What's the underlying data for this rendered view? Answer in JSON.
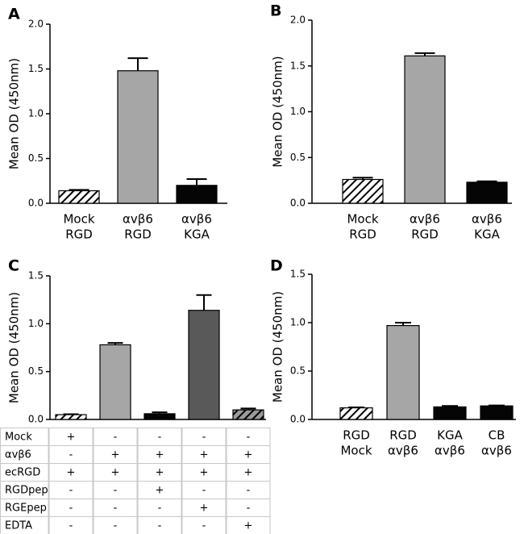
{
  "chart_data": [
    {
      "type": "bar",
      "panel": "A",
      "y_label": "Mean OD (450nm)",
      "categories": [
        [
          "Mock",
          "RGD"
        ],
        [
          "αvβ6",
          "RGD"
        ],
        [
          "αvβ6",
          "KGA"
        ]
      ],
      "values": [
        0.14,
        1.48,
        0.2
      ],
      "errors": [
        0.01,
        0.14,
        0.07
      ],
      "colors": [
        "#ffffff",
        "#a6a6a6",
        "#050505"
      ],
      "hatch": [
        true,
        false,
        false
      ],
      "ylim": [
        0,
        2
      ],
      "yticks": [
        {
          "value": 0,
          "label": "0.0"
        },
        0.5,
        {
          "value": 1,
          "label": "1.0"
        },
        1.5,
        {
          "value": 2,
          "label": "2.0"
        }
      ]
    },
    {
      "type": "bar",
      "panel": "B",
      "y_label": "Mean OD (450nm)",
      "categories": [
        [
          "Mock",
          "RGD"
        ],
        [
          "αvβ6",
          "RGD"
        ],
        [
          "αvβ6",
          "KGA"
        ]
      ],
      "values": [
        0.26,
        1.61,
        0.23
      ],
      "errors": [
        0.02,
        0.03,
        0.01
      ],
      "colors": [
        "#ffffff",
        "#a6a6a6",
        "#050505"
      ],
      "hatch": [
        true,
        false,
        false
      ],
      "ylim": [
        0,
        2
      ],
      "yticks": [
        {
          "value": 0,
          "label": "0.0"
        },
        0.5,
        {
          "value": 1,
          "label": "1.0"
        },
        1.5,
        {
          "value": 2,
          "label": "2.0"
        }
      ]
    },
    {
      "type": "bar",
      "panel": "C",
      "y_label": "Mean OD (450nm)",
      "values": [
        0.05,
        0.78,
        0.06,
        1.14,
        0.1
      ],
      "errors": [
        0.005,
        0.02,
        0.015,
        0.16,
        0.015
      ],
      "colors": [
        "#ffffff",
        "#a6a6a6",
        "#050505",
        "#595959",
        "#9a9a9a"
      ],
      "hatch": [
        true,
        false,
        false,
        false,
        true
      ],
      "ylim": [
        0,
        1.5
      ],
      "yticks": [
        {
          "value": 0,
          "label": "0.0"
        },
        0.5,
        {
          "value": 1,
          "label": "1.0"
        },
        1.5
      ],
      "table": {
        "rows": [
          [
            "Mock",
            "+",
            "-",
            "-",
            "-",
            "-"
          ],
          [
            "αvβ6",
            "-",
            "+",
            "+",
            "+",
            "+"
          ],
          [
            "ecRGD",
            "+",
            "+",
            "+",
            "+",
            "+"
          ],
          [
            "RGDpep",
            "-",
            "-",
            "+",
            "-",
            "-"
          ],
          [
            "RGEpep",
            "-",
            "-",
            "-",
            "+",
            "-"
          ],
          [
            "EDTA",
            "-",
            "-",
            "-",
            "-",
            "+"
          ]
        ]
      }
    },
    {
      "type": "bar",
      "panel": "D",
      "y_label": "Mean OD (450nm)",
      "categories": [
        [
          "RGD",
          "Mock"
        ],
        [
          "RGD",
          "αvβ6"
        ],
        [
          "KGA",
          "αvβ6"
        ],
        [
          "CB",
          "αvβ6"
        ]
      ],
      "values": [
        0.12,
        0.97,
        0.13,
        0.14
      ],
      "errors": [
        0.005,
        0.03,
        0.01,
        0.005
      ],
      "colors": [
        "#ffffff",
        "#a6a6a6",
        "#050505",
        "#050505"
      ],
      "hatch": [
        true,
        false,
        false,
        false
      ],
      "ylim": [
        0,
        1.5
      ],
      "yticks": [
        {
          "value": 0,
          "label": "0.0"
        },
        0.5,
        {
          "value": 1,
          "label": "1.0"
        },
        1.5
      ]
    }
  ]
}
